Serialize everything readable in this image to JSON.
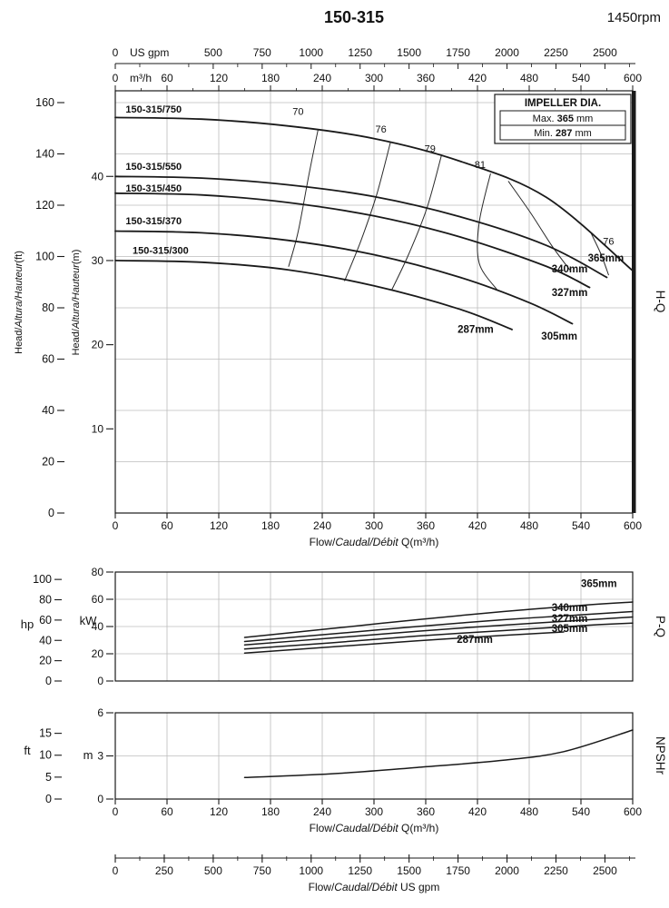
{
  "header": {
    "title": "150-315",
    "rpm": "1450rpm"
  },
  "colors": {
    "curve": "#1a1a1a",
    "contour": "#2a2a2a",
    "grid": "#bcbcbc",
    "border": "#1a1a1a",
    "text": "#111111"
  },
  "top_axis_gpm": {
    "unit": "US gpm",
    "max_gpm": 2641.72,
    "tick_values": [
      0,
      500,
      750,
      1000,
      1250,
      1500,
      1750,
      2000,
      2250,
      2500
    ],
    "tick_labels": [
      "0",
      "500",
      "750",
      "1000",
      "1250",
      "1500",
      "1750",
      "2000",
      "2250",
      "2500"
    ]
  },
  "top_axis_m3h": {
    "unit": "m³/h",
    "ticks": [
      0,
      60,
      120,
      180,
      240,
      300,
      360,
      420,
      480,
      540,
      600
    ]
  },
  "bottom_axis_gpm": {
    "tick_values": [
      0,
      250,
      500,
      750,
      1000,
      1250,
      1500,
      1750,
      2000,
      2250,
      2500
    ],
    "label_parts": [
      "Flow/",
      "Caudal/Débit",
      "  US gpm"
    ]
  },
  "chart_data": [
    {
      "id": "hq",
      "type": "line",
      "side_label": "H-Q",
      "x_axis": {
        "unit": "m³/h",
        "range": [
          0,
          600
        ],
        "ticks": [
          0,
          60,
          120,
          180,
          240,
          300,
          360,
          420,
          480,
          540,
          600
        ],
        "label_parts": [
          "Flow/",
          "Caudal/Débit",
          " Q(m³/h)"
        ]
      },
      "y_axis_ft": {
        "unit": "ft",
        "range": [
          0,
          160
        ],
        "ticks": [
          0,
          20,
          40,
          60,
          80,
          100,
          120,
          140,
          160
        ],
        "label_parts": [
          "Head/",
          "Altura/Hauteur",
          "(ft)"
        ]
      },
      "y_axis_m": {
        "unit": "m",
        "ticks": [
          10,
          20,
          30,
          40
        ],
        "label_parts": [
          "Head/",
          "Altura/Hauteur",
          "(m)"
        ]
      },
      "legend": {
        "title": "IMPELLER DIA.",
        "rows": [
          [
            "Max. ",
            "365",
            " mm"
          ],
          [
            "Min. ",
            "287",
            " mm"
          ]
        ]
      },
      "series": [
        {
          "name": "150-315/750",
          "impeller": "365mm",
          "points_q_m": [
            [
              0,
              47
            ],
            [
              100,
              46.8
            ],
            [
              200,
              46
            ],
            [
              300,
              44.5
            ],
            [
              400,
              41.8
            ],
            [
              500,
              37.5
            ],
            [
              600,
              28.8
            ]
          ],
          "name_label": {
            "q": 12,
            "m": 47.6
          },
          "impeller_label": {
            "q": 548,
            "m": 29.9
          }
        },
        {
          "name": "150-315/550",
          "impeller": "340mm",
          "points_q_m": [
            [
              0,
              40
            ],
            [
              100,
              39.8
            ],
            [
              200,
              39
            ],
            [
              300,
              37.6
            ],
            [
              400,
              35.2
            ],
            [
              500,
              31.8
            ],
            [
              570,
              28
            ]
          ],
          "name_label": {
            "q": 12,
            "m": 40.8
          },
          "impeller_label": {
            "q": 506,
            "m": 28.6
          }
        },
        {
          "name": "150-315/450",
          "impeller": "327mm",
          "points_q_m": [
            [
              0,
              38
            ],
            [
              100,
              37.8
            ],
            [
              200,
              36.9
            ],
            [
              300,
              35.3
            ],
            [
              400,
              32.8
            ],
            [
              500,
              29.3
            ],
            [
              550,
              26.8
            ]
          ],
          "name_label": {
            "q": 12,
            "m": 38.2
          },
          "impeller_label": {
            "q": 506,
            "m": 25.8
          }
        },
        {
          "name": "150-315/370",
          "impeller": "305mm",
          "points_q_m": [
            [
              0,
              33.5
            ],
            [
              100,
              33.3
            ],
            [
              200,
              32.4
            ],
            [
              300,
              30.7
            ],
            [
              400,
              28
            ],
            [
              480,
              25
            ],
            [
              530,
              22.5
            ]
          ],
          "name_label": {
            "q": 12,
            "m": 34.3
          },
          "impeller_label": {
            "q": 494,
            "m": 20.6
          }
        },
        {
          "name": "150-315/300",
          "impeller": "287mm",
          "points_q_m": [
            [
              0,
              30
            ],
            [
              100,
              29.8
            ],
            [
              200,
              28.9
            ],
            [
              300,
              27
            ],
            [
              400,
              24.2
            ],
            [
              460,
              21.8
            ]
          ],
          "name_label": {
            "q": 20,
            "m": 30.8
          },
          "impeller_label": {
            "q": 397,
            "m": 21.4
          }
        }
      ],
      "efficiency_contours": [
        {
          "label": "70",
          "label_pos": {
            "q": 212,
            "m": 47.3
          },
          "points_q_m": [
            [
              235,
              45.5
            ],
            [
              224,
              39.9
            ],
            [
              212,
              33.4
            ],
            [
              201,
              29.3
            ]
          ]
        },
        {
          "label": "76",
          "label_pos": {
            "q": 308,
            "m": 45.2
          },
          "points_q_m": [
            [
              319,
              44.0
            ],
            [
              303,
              37.8
            ],
            [
              285,
              32.4
            ],
            [
              266,
              27.6
            ]
          ]
        },
        {
          "label": "79",
          "label_pos": {
            "q": 365,
            "m": 42.9
          },
          "points_q_m": [
            [
              378,
              42.4
            ],
            [
              361,
              36.1
            ],
            [
              340,
              30.7
            ],
            [
              321,
              26.6
            ]
          ]
        },
        {
          "label": "81",
          "label_pos": {
            "q": 423,
            "m": 41.0
          },
          "points_q_m": [
            [
              435,
              40.3
            ],
            [
              422,
              34.5
            ],
            [
              422,
              29.7
            ],
            [
              443,
              26.5
            ]
          ]
        },
        {
          "label": null,
          "label_pos": null,
          "points_q_m": [
            [
              456,
              39.4
            ],
            [
              482,
              35.6
            ],
            [
              506,
              31.8
            ],
            [
              527,
              28.9
            ]
          ]
        },
        {
          "label": "76",
          "label_pos": {
            "q": 572,
            "m": 31.9
          },
          "points_q_m": [
            [
              552,
              33.2
            ],
            [
              563,
              30.8
            ],
            [
              572,
              28.3
            ]
          ]
        }
      ]
    },
    {
      "id": "pq",
      "type": "line",
      "side_label": "P-Q",
      "y_axis_kw": {
        "unit": "kW",
        "range": [
          0,
          80
        ],
        "ticks": [
          0,
          20,
          40,
          60,
          80
        ]
      },
      "y_axis_hp": {
        "unit": "hp",
        "ticks": [
          0,
          20,
          40,
          60,
          80,
          100
        ]
      },
      "series": [
        {
          "impeller": "365mm",
          "points_q_kw": [
            [
              150,
              32
            ],
            [
              250,
              38.5
            ],
            [
              350,
              45
            ],
            [
              450,
              51
            ],
            [
              550,
              56
            ],
            [
              600,
              58
            ]
          ],
          "label": {
            "q": 540,
            "kw": 69
          }
        },
        {
          "impeller": "340mm",
          "points_q_kw": [
            [
              150,
              29
            ],
            [
              250,
              34.5
            ],
            [
              350,
              40
            ],
            [
              450,
              45
            ],
            [
              550,
              49
            ],
            [
              600,
              51
            ]
          ],
          "label": {
            "q": 506,
            "kw": 51.5
          }
        },
        {
          "impeller": "327mm",
          "points_q_kw": [
            [
              150,
              26.5
            ],
            [
              250,
              31.5
            ],
            [
              350,
              36.5
            ],
            [
              450,
              41
            ],
            [
              550,
              45
            ],
            [
              600,
              47
            ]
          ],
          "label": {
            "q": 506,
            "kw": 43.5
          }
        },
        {
          "impeller": "305mm",
          "points_q_kw": [
            [
              150,
              23.5
            ],
            [
              250,
              28
            ],
            [
              350,
              33
            ],
            [
              450,
              37
            ],
            [
              550,
              41
            ],
            [
              600,
              42.5
            ]
          ],
          "label": {
            "q": 506,
            "kw": 36
          }
        },
        {
          "impeller": "287mm",
          "points_q_kw": [
            [
              150,
              20.5
            ],
            [
              250,
              25
            ],
            [
              350,
              29.5
            ],
            [
              450,
              33.5
            ],
            [
              520,
              36
            ]
          ],
          "label": {
            "q": 396,
            "kw": 28
          }
        }
      ]
    },
    {
      "id": "npshr",
      "type": "line",
      "side_label": "NPSHr",
      "x_axis": {
        "unit": "m³/h",
        "ticks": [
          0,
          60,
          120,
          180,
          240,
          300,
          360,
          420,
          480,
          540,
          600
        ],
        "label_parts": [
          "Flow/",
          "Caudal/Débit",
          " Q(m³/h)"
        ]
      },
      "y_axis_m": {
        "unit": "m",
        "range": [
          0,
          6
        ],
        "ticks": [
          0,
          3,
          6
        ]
      },
      "y_axis_ft": {
        "unit": "ft",
        "ticks": [
          0,
          5,
          10,
          15
        ]
      },
      "series": [
        {
          "name": "NPSHr",
          "points_q_m": [
            [
              150,
              1.5
            ],
            [
              250,
              1.75
            ],
            [
              350,
              2.2
            ],
            [
              450,
              2.7
            ],
            [
              520,
              3.3
            ],
            [
              600,
              4.8
            ]
          ]
        }
      ]
    }
  ]
}
